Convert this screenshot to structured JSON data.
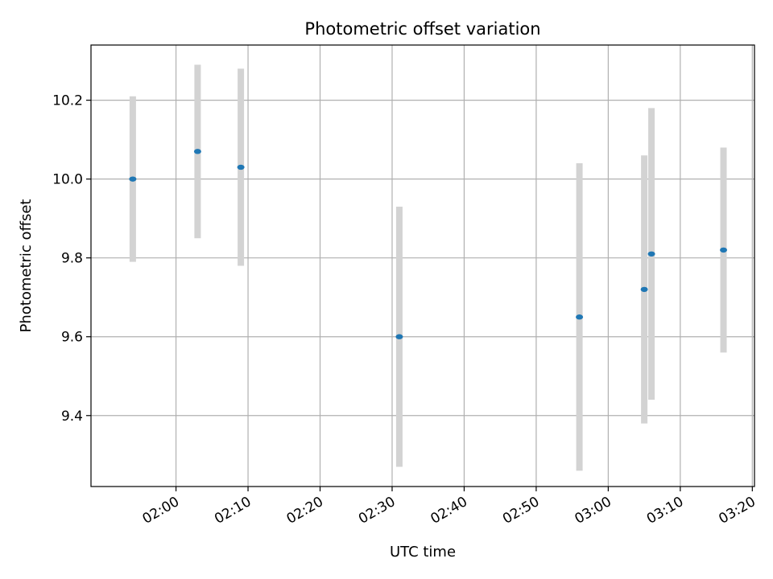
{
  "chart_data": {
    "type": "scatter",
    "title": "Photometric offset variation",
    "xlabel": "UTC time",
    "ylabel": "Photometric offset",
    "x_ticks": [
      "02:00",
      "02:10",
      "02:20",
      "02:30",
      "02:40",
      "02:50",
      "03:00",
      "03:10",
      "03:20"
    ],
    "y_ticks": [
      "9.4",
      "9.6",
      "9.8",
      "10.0",
      "10.2"
    ],
    "xlim": [
      "01:50",
      "03:20"
    ],
    "ylim": [
      9.22,
      10.34
    ],
    "grid": true,
    "points": [
      {
        "time": "01:54",
        "value": 10.0,
        "err": 0.21
      },
      {
        "time": "02:03",
        "value": 10.07,
        "err": 0.22
      },
      {
        "time": "02:09",
        "value": 10.03,
        "err": 0.25
      },
      {
        "time": "02:31",
        "value": 9.6,
        "err": 0.33
      },
      {
        "time": "02:56",
        "value": 9.65,
        "err": 0.39
      },
      {
        "time": "03:05",
        "value": 9.72,
        "err": 0.34
      },
      {
        "time": "03:06",
        "value": 9.81,
        "err": 0.37
      },
      {
        "time": "03:16",
        "value": 9.82,
        "err": 0.26
      }
    ],
    "colors": {
      "point": "#1f77b4",
      "errorbar": "#d3d3d3",
      "grid": "#b0b0b0"
    }
  }
}
